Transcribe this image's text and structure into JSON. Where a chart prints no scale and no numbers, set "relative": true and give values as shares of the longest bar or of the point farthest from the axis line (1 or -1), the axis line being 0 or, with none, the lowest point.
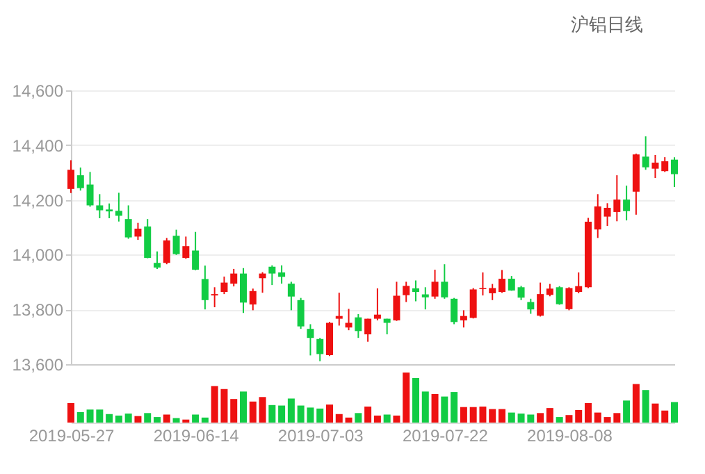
{
  "chart_data": [
    {
      "type": "candlestick",
      "title": "沪铝日线",
      "categories": [
        "2019-05-27",
        null,
        null,
        null,
        null,
        null,
        null,
        null,
        null,
        null,
        null,
        null,
        null,
        "2019-06-14",
        null,
        null,
        null,
        null,
        null,
        null,
        null,
        null,
        null,
        null,
        null,
        null,
        "2019-07-03",
        null,
        null,
        null,
        null,
        null,
        null,
        null,
        null,
        null,
        null,
        null,
        null,
        "2019-07-22",
        null,
        null,
        null,
        null,
        null,
        null,
        null,
        null,
        null,
        null,
        null,
        null,
        "2019-08-08",
        null,
        null,
        null,
        null,
        null,
        null,
        null,
        null,
        null,
        null,
        null
      ],
      "ohlc": [
        [
          14240,
          14345,
          14225,
          14310
        ],
        [
          14290,
          14318,
          14234,
          14243
        ],
        [
          14256,
          14302,
          14175,
          14180
        ],
        [
          14180,
          14221,
          14133,
          14162
        ],
        [
          14165,
          14187,
          14133,
          14158
        ],
        [
          14160,
          14226,
          14121,
          14142
        ],
        [
          14130,
          14180,
          14058,
          14063
        ],
        [
          14066,
          14116,
          14054,
          14095
        ],
        [
          14103,
          14130,
          13987,
          13988
        ],
        [
          13970,
          14012,
          13948,
          13953
        ],
        [
          13970,
          14061,
          13965,
          14052
        ],
        [
          14069,
          14091,
          13999,
          14002
        ],
        [
          13988,
          14066,
          13985,
          14031
        ],
        [
          14015,
          14083,
          13943,
          13945
        ],
        [
          13911,
          13960,
          13800,
          13834
        ],
        [
          13851,
          13881,
          13808,
          13856
        ],
        [
          13864,
          13920,
          13856,
          13898
        ],
        [
          13894,
          13948,
          13884,
          13931
        ],
        [
          13931,
          13951,
          13787,
          13825
        ],
        [
          13818,
          13876,
          13797,
          13867
        ],
        [
          13914,
          13936,
          13861,
          13931
        ],
        [
          13956,
          13961,
          13889,
          13931
        ],
        [
          13935,
          13961,
          13894,
          13919
        ],
        [
          13894,
          13901,
          13797,
          13847
        ],
        [
          13834,
          13842,
          13729,
          13738
        ],
        [
          13729,
          13746,
          13632,
          13696
        ],
        [
          13692,
          13696,
          13611,
          13637
        ],
        [
          13633,
          13755,
          13630,
          13751
        ],
        [
          13766,
          13861,
          13741,
          13776
        ],
        [
          13734,
          13802,
          13724,
          13751
        ],
        [
          13771,
          13783,
          13696,
          13721
        ],
        [
          13709,
          13766,
          13682,
          13766
        ],
        [
          13766,
          13877,
          13760,
          13781
        ],
        [
          13766,
          13766,
          13709,
          13751
        ],
        [
          13760,
          13901,
          13758,
          13850
        ],
        [
          13852,
          13901,
          13827,
          13886
        ],
        [
          13877,
          13906,
          13830,
          13864
        ],
        [
          13855,
          13881,
          13800,
          13844
        ],
        [
          13847,
          13945,
          13839,
          13901
        ],
        [
          13901,
          13965,
          13839,
          13844
        ],
        [
          13839,
          13842,
          13746,
          13754
        ],
        [
          13760,
          13797,
          13734,
          13776
        ],
        [
          13769,
          13878,
          13767,
          13873
        ],
        [
          13874,
          13935,
          13851,
          13878
        ],
        [
          13859,
          13893,
          13834,
          13878
        ],
        [
          13864,
          13944,
          13861,
          13912
        ],
        [
          13912,
          13922,
          13868,
          13869
        ],
        [
          13881,
          13886,
          13834,
          13843
        ],
        [
          13827,
          13839,
          13784,
          13800
        ],
        [
          13777,
          13898,
          13774,
          13856
        ],
        [
          13853,
          13893,
          13848,
          13876
        ],
        [
          13881,
          13885,
          13817,
          13819
        ],
        [
          13801,
          13881,
          13797,
          13878
        ],
        [
          13864,
          13935,
          13859,
          13885
        ],
        [
          13881,
          14134,
          13878,
          14120
        ],
        [
          14092,
          14221,
          14061,
          14176
        ],
        [
          14139,
          14188,
          14105,
          14171
        ],
        [
          14156,
          14290,
          14122,
          14201
        ],
        [
          14201,
          14252,
          14125,
          14159
        ],
        [
          14230,
          14369,
          14146,
          14366
        ],
        [
          14358,
          14432,
          14310,
          14319
        ],
        [
          14314,
          14364,
          14280,
          14336
        ],
        [
          14305,
          14356,
          14302,
          14341
        ],
        [
          14347,
          14356,
          14247,
          14294
        ]
      ],
      "colors": [
        "#ee1111",
        "#11cc44",
        "#11cc44",
        "#11cc44",
        "#11cc44",
        "#11cc44",
        "#11cc44",
        "#ee1111",
        "#11cc44",
        "#11cc44",
        "#ee1111",
        "#11cc44",
        "#ee1111",
        "#11cc44",
        "#11cc44",
        "#ee1111",
        "#ee1111",
        "#ee1111",
        "#11cc44",
        "#ee1111",
        "#ee1111",
        "#11cc44",
        "#11cc44",
        "#11cc44",
        "#11cc44",
        "#11cc44",
        "#11cc44",
        "#ee1111",
        "#ee1111",
        "#ee1111",
        "#11cc44",
        "#ee1111",
        "#ee1111",
        "#11cc44",
        "#ee1111",
        "#ee1111",
        "#11cc44",
        "#11cc44",
        "#ee1111",
        "#11cc44",
        "#11cc44",
        "#ee1111",
        "#ee1111",
        "#ee1111",
        "#ee1111",
        "#ee1111",
        "#11cc44",
        "#11cc44",
        "#11cc44",
        "#ee1111",
        "#ee1111",
        "#11cc44",
        "#ee1111",
        "#ee1111",
        "#ee1111",
        "#ee1111",
        "#ee1111",
        "#ee1111",
        "#11cc44",
        "#ee1111",
        "#11cc44",
        "#ee1111",
        "#ee1111",
        "#11cc44"
      ],
      "ylim": [
        13600,
        14600
      ],
      "yticks": [
        {
          "value": 13600,
          "label": "13,600"
        },
        {
          "value": 13800,
          "label": "13,800"
        },
        {
          "value": 14000,
          "label": "14,000"
        },
        {
          "value": 14200,
          "label": "14,200"
        },
        {
          "value": 14400,
          "label": "14,400"
        },
        {
          "value": 14600,
          "label": "14,600"
        }
      ],
      "grid": "y",
      "tick_labels": "y"
    },
    {
      "type": "bar",
      "relative": true,
      "tick_labels": "x",
      "categories": [
        "2019-05-27",
        null,
        null,
        null,
        null,
        null,
        null,
        null,
        null,
        null,
        null,
        null,
        null,
        "2019-06-14",
        null,
        null,
        null,
        null,
        null,
        null,
        null,
        null,
        null,
        null,
        null,
        null,
        "2019-07-03",
        null,
        null,
        null,
        null,
        null,
        null,
        null,
        null,
        null,
        null,
        null,
        null,
        "2019-07-22",
        null,
        null,
        null,
        null,
        null,
        null,
        null,
        null,
        null,
        null,
        null,
        null,
        "2019-08-08",
        null,
        null,
        null,
        null,
        null,
        null,
        null,
        null,
        null,
        null,
        null
      ],
      "values": [
        0.39,
        0.21,
        0.26,
        0.26,
        0.17,
        0.14,
        0.18,
        0.13,
        0.19,
        0.11,
        0.16,
        0.09,
        0.06,
        0.16,
        0.1,
        0.73,
        0.67,
        0.47,
        0.62,
        0.42,
        0.51,
        0.35,
        0.34,
        0.48,
        0.34,
        0.3,
        0.28,
        0.36,
        0.17,
        0.1,
        0.19,
        0.32,
        0.14,
        0.16,
        0.14,
        1,
        0.89,
        0.62,
        0.57,
        0.52,
        0.61,
        0.31,
        0.31,
        0.32,
        0.27,
        0.27,
        0.2,
        0.18,
        0.16,
        0.19,
        0.29,
        0.11,
        0.15,
        0.25,
        0.39,
        0.2,
        0.11,
        0.19,
        0.44,
        0.77,
        0.65,
        0.38,
        0.24,
        0.41
      ],
      "colors": [
        "#ee1111",
        "#11cc44",
        "#11cc44",
        "#11cc44",
        "#11cc44",
        "#11cc44",
        "#11cc44",
        "#ee1111",
        "#11cc44",
        "#11cc44",
        "#ee1111",
        "#11cc44",
        "#ee1111",
        "#11cc44",
        "#11cc44",
        "#ee1111",
        "#ee1111",
        "#ee1111",
        "#11cc44",
        "#ee1111",
        "#ee1111",
        "#11cc44",
        "#11cc44",
        "#11cc44",
        "#11cc44",
        "#11cc44",
        "#11cc44",
        "#ee1111",
        "#ee1111",
        "#ee1111",
        "#11cc44",
        "#ee1111",
        "#ee1111",
        "#11cc44",
        "#ee1111",
        "#ee1111",
        "#11cc44",
        "#11cc44",
        "#ee1111",
        "#11cc44",
        "#11cc44",
        "#ee1111",
        "#ee1111",
        "#ee1111",
        "#ee1111",
        "#ee1111",
        "#11cc44",
        "#11cc44",
        "#11cc44",
        "#ee1111",
        "#ee1111",
        "#11cc44",
        "#ee1111",
        "#ee1111",
        "#ee1111",
        "#ee1111",
        "#ee1111",
        "#ee1111",
        "#11cc44",
        "#ee1111",
        "#11cc44",
        "#ee1111",
        "#ee1111",
        "#11cc44"
      ]
    }
  ]
}
